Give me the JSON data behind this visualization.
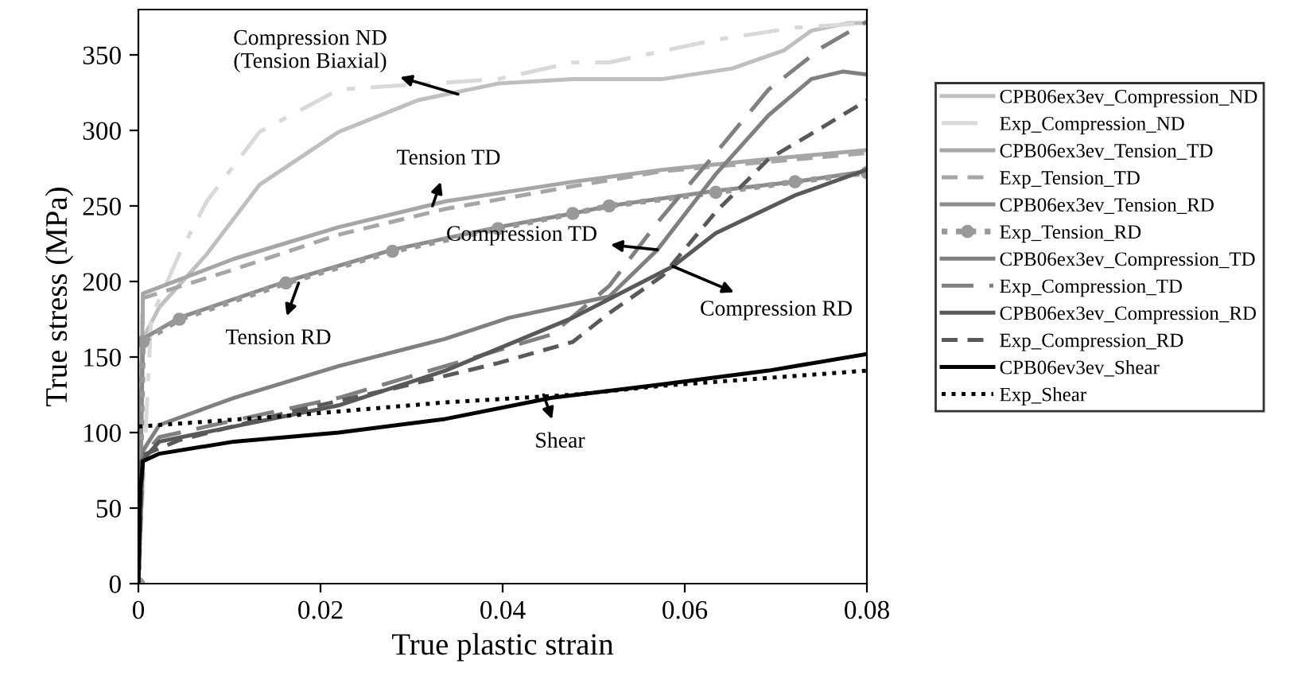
{
  "chart_data": {
    "type": "line",
    "xlabel": "True plastic strain",
    "ylabel": "True stress (MPa)",
    "xlim": [
      0,
      0.08
    ],
    "ylim": [
      0,
      380
    ],
    "xticks": [
      0,
      {
        "value": 0.02,
        "label": "0.02"
      },
      {
        "value": 0.04,
        "label": "0.04"
      },
      {
        "value": 0.06,
        "label": "0.06"
      },
      {
        "value": 0.08,
        "label": "0.08"
      }
    ],
    "yticks": [
      0,
      50,
      100,
      150,
      200,
      250,
      300,
      350
    ],
    "grid": false,
    "legend": "right",
    "marker": "none",
    "series": [
      {
        "name": "CPB06ex3ev_Compression_ND",
        "color": "#bfbfbf",
        "line_style": "solid",
        "x": [
          0,
          0.0005,
          0.0023,
          0.0075,
          0.0133,
          0.022,
          0.0307,
          0.0395,
          0.0477,
          0.0576,
          0.0652,
          0.0709,
          0.0739,
          0.0779,
          0.08
        ],
        "values": [
          0,
          162,
          183,
          218,
          264,
          299,
          320,
          331,
          334,
          334,
          341,
          353,
          366,
          371,
          371
        ]
      },
      {
        "name": "Exp_Compression_ND",
        "color": "#d9d9d9",
        "line_style": "dashdot",
        "x": [
          0,
          0.0014,
          0.0045,
          0.0075,
          0.0133,
          0.022,
          0.0395,
          0.0477,
          0.0517,
          0.0634,
          0.0721,
          0.08
        ],
        "values": [
          0,
          176,
          218,
          253,
          299,
          327,
          334,
          345,
          345,
          360,
          368,
          371
        ]
      },
      {
        "name": "CPB06ex3ev_Tension_TD",
        "color": "#a6a6a6",
        "line_style": "solid",
        "x": [
          0,
          0.0005,
          0.0105,
          0.022,
          0.0337,
          0.0477,
          0.0576,
          0.0692,
          0.08
        ],
        "values": [
          0,
          192,
          215,
          236,
          253,
          266,
          274,
          281,
          287
        ]
      },
      {
        "name": "Exp_Tension_TD",
        "color": "#a6a6a6",
        "line_style": "dashed",
        "x": [
          0,
          0.0005,
          0.0105,
          0.022,
          0.0337,
          0.0477,
          0.0576,
          0.08
        ],
        "values": [
          0,
          189,
          208,
          231,
          248,
          263,
          273,
          285
        ]
      },
      {
        "name": "CPB06ex3ev_Tension_RD",
        "color": "#8c8c8c",
        "line_style": "solid",
        "x": [
          0,
          0.0005,
          0.0045,
          0.0162,
          0.0279,
          0.0395,
          0.0477,
          0.0517,
          0.0634,
          0.0721,
          0.08
        ],
        "values": [
          0,
          162,
          176,
          200,
          221,
          236,
          245,
          250,
          260,
          266,
          273
        ]
      },
      {
        "name": "Exp_Tension_RD",
        "color": "#999999",
        "line_style": "dotted",
        "marker": "circle",
        "x": [
          0,
          0.0005,
          0.0045,
          0.0162,
          0.0279,
          0.0395,
          0.0477,
          0.0517,
          0.0634,
          0.0721,
          0.08
        ],
        "values": [
          0,
          160,
          175,
          199,
          220,
          235,
          245,
          250,
          259,
          266,
          272
        ]
      },
      {
        "name": "CPB06ex3ev_Compression_TD",
        "color": "#808080",
        "line_style": "solid",
        "x": [
          0,
          0.0005,
          0.0023,
          0.0105,
          0.022,
          0.0337,
          0.0407,
          0.0517,
          0.057,
          0.0634,
          0.0692,
          0.0739,
          0.0774,
          0.08
        ],
        "values": [
          0,
          88,
          105,
          123,
          144,
          162,
          176,
          190,
          221,
          271,
          310,
          334,
          339,
          337
        ]
      },
      {
        "name": "Exp_Compression_TD",
        "color": "#808080",
        "line_style": "longdash",
        "x": [
          0,
          0.0005,
          0.0023,
          0.0105,
          0.022,
          0.0337,
          0.0454,
          0.0517,
          0.057,
          0.0634,
          0.0692,
          0.0751,
          0.08
        ],
        "values": [
          0,
          85,
          97,
          108,
          123,
          144,
          165,
          197,
          239,
          285,
          327,
          355,
          372
        ]
      },
      {
        "name": "CPB06ex3ev_Compression_RD",
        "color": "#595959",
        "line_style": "solid",
        "x": [
          0,
          0.0002,
          0.0023,
          0.0105,
          0.022,
          0.0337,
          0.0477,
          0.0587,
          0.0634,
          0.0721,
          0.08
        ],
        "values": [
          0,
          80,
          94,
          104,
          118,
          141,
          176,
          210,
          232,
          257,
          274
        ]
      },
      {
        "name": "Exp_Compression_RD",
        "color": "#595959",
        "line_style": "dashed",
        "x": [
          0,
          0.0005,
          0.0045,
          0.0162,
          0.0279,
          0.0395,
          0.0477,
          0.0517,
          0.0576,
          0.0634,
          0.0692,
          0.0751,
          0.08
        ],
        "values": [
          0,
          85,
          95,
          113,
          129,
          146,
          160,
          179,
          204,
          246,
          281,
          302,
          320
        ]
      },
      {
        "name": "CPB06ev3ev_Shear",
        "color": "#000000",
        "line_style": "solid",
        "x": [
          0,
          0.0002,
          0.0005,
          0.0023,
          0.0105,
          0.022,
          0.0337,
          0.0454,
          0.0576,
          0.0692,
          0.08
        ],
        "values": [
          0,
          60,
          81,
          86,
          94,
          100,
          109,
          123,
          132,
          141,
          152
        ]
      },
      {
        "name": "Exp_Shear",
        "color": "#000000",
        "line_style": "dotted",
        "x": [
          0,
          0.0162,
          0.0337,
          0.0477,
          0.0576,
          0.08
        ],
        "values": [
          104,
          111,
          120,
          125,
          131,
          141
        ]
      }
    ],
    "annotations": [
      {
        "text": "Compression ND\n(Tension Biaxial)",
        "x": 0.0351,
        "y": 324
      },
      {
        "text": "Tension TD",
        "x": 0.0323,
        "y": 250
      },
      {
        "text": "Tension RD",
        "x": 0.0176,
        "y": 199
      },
      {
        "text": "Compression TD",
        "x": 0.057,
        "y": 221
      },
      {
        "text": "Compression RD",
        "x": 0.0587,
        "y": 210
      },
      {
        "text": "Shear",
        "x": 0.0445,
        "y": 125
      }
    ]
  }
}
